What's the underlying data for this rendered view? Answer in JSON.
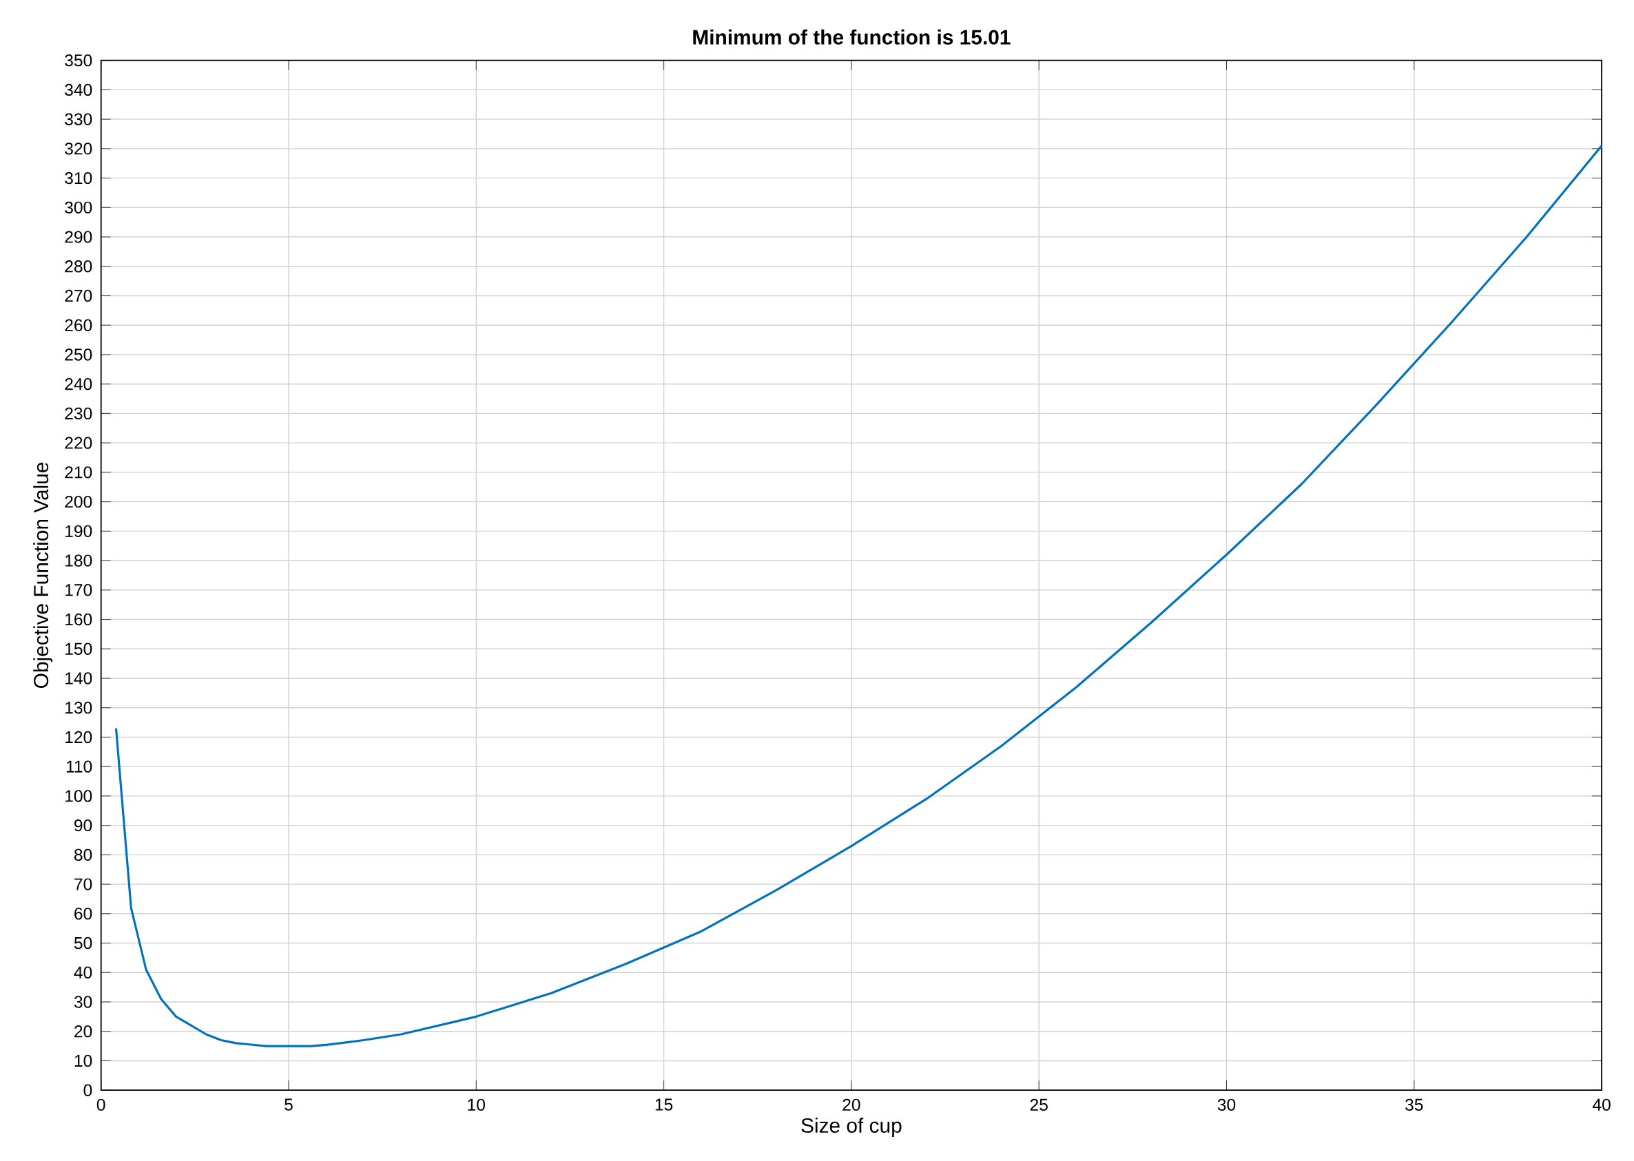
{
  "chart_data": {
    "type": "line",
    "title": "Minimum of the function is 15.01",
    "xlabel": "Size of cup",
    "ylabel": "Objective Function Value",
    "x": [
      0.4,
      0.8,
      1.2,
      1.6,
      2,
      2.4,
      2.8,
      3.2,
      3.6,
      4,
      4.4,
      4.8,
      5.2,
      5.6,
      6,
      7,
      8,
      9,
      10,
      12,
      14,
      16,
      18,
      20,
      22,
      24,
      26,
      28,
      30,
      32,
      34,
      36,
      38,
      40
    ],
    "series": [
      {
        "color": "#0072bd",
        "values": [
          123,
          62,
          41,
          31,
          25,
          22,
          19,
          17,
          16,
          15.5,
          15,
          15,
          15,
          15,
          15.4,
          17,
          19,
          22,
          25,
          33,
          43,
          54,
          68,
          83,
          99,
          117,
          137,
          159,
          182,
          206,
          233,
          261,
          290,
          321
        ]
      }
    ],
    "xlim": [
      0,
      40
    ],
    "ylim": [
      0,
      350
    ],
    "xticks": [
      0,
      5,
      10,
      15,
      20,
      25,
      30,
      35,
      40
    ],
    "yticks": [
      0,
      10,
      20,
      30,
      40,
      50,
      60,
      70,
      80,
      90,
      100,
      110,
      120,
      130,
      140,
      150,
      160,
      170,
      180,
      190,
      200,
      210,
      220,
      230,
      240,
      250,
      260,
      270,
      280,
      290,
      300,
      310,
      320,
      330,
      340,
      350
    ],
    "grid": true,
    "marker": "none",
    "line_style": "solid"
  }
}
